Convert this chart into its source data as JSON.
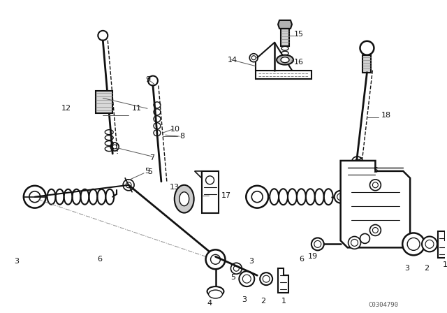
{
  "bg_color": "#ffffff",
  "line_color": "#111111",
  "watermark": "C0304790",
  "figsize": [
    6.4,
    4.48
  ],
  "dpi": 100
}
